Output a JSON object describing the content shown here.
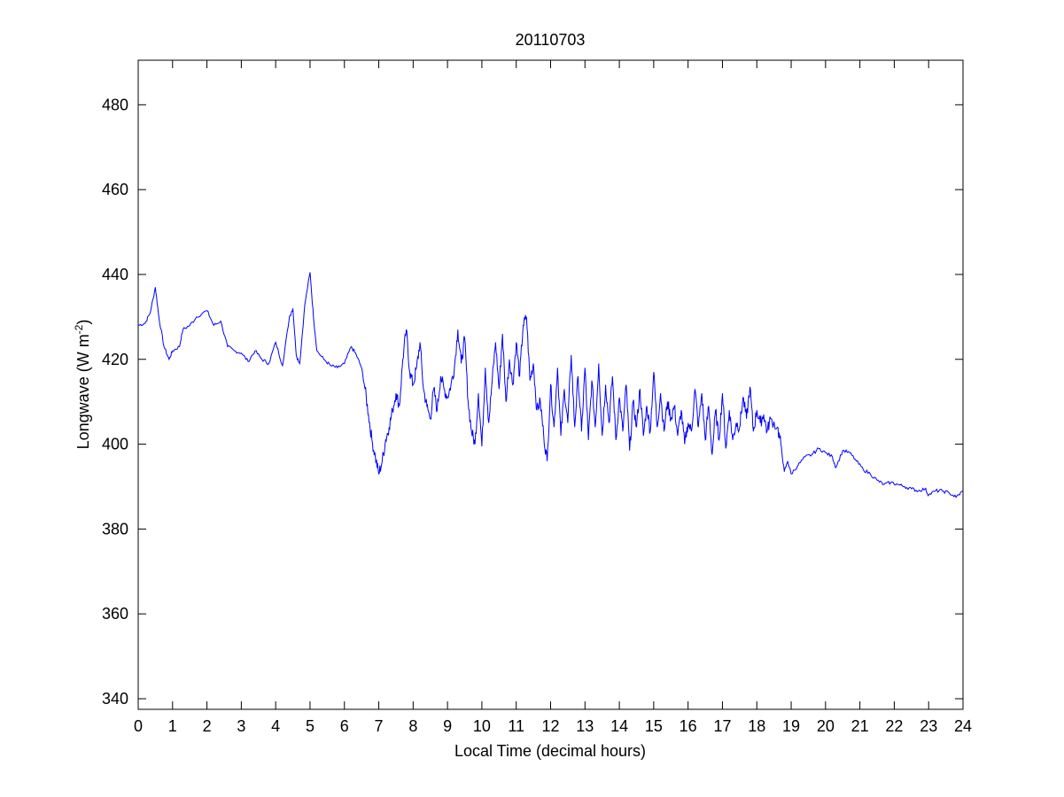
{
  "chart_data": {
    "type": "line",
    "title": "20110703",
    "xlabel": "Local Time (decimal hours)",
    "ylabel_main": "Longwave (W m",
    "ylabel_sup": "-2",
    "ylabel_end": ")",
    "xlim": [
      0,
      24
    ],
    "ylim": [
      337.5,
      490.5
    ],
    "xticks": [
      0,
      1,
      2,
      3,
      4,
      5,
      6,
      7,
      8,
      9,
      10,
      11,
      12,
      13,
      14,
      15,
      16,
      17,
      18,
      19,
      20,
      21,
      22,
      23,
      24
    ],
    "yticks": [
      340,
      360,
      380,
      400,
      420,
      440,
      460,
      480
    ],
    "grid": false,
    "series": [
      {
        "name": "Longwave",
        "color": "#0000ff",
        "x": [
          0,
          0.2,
          0.35,
          0.5,
          0.6,
          0.75,
          0.9,
          1.0,
          1.2,
          1.3,
          1.5,
          1.7,
          2.0,
          2.2,
          2.4,
          2.6,
          2.8,
          3.0,
          3.2,
          3.4,
          3.6,
          3.8,
          4.0,
          4.2,
          4.4,
          4.5,
          4.6,
          4.7,
          4.85,
          5.0,
          5.1,
          5.2,
          5.4,
          5.6,
          5.8,
          6.0,
          6.2,
          6.35,
          6.5,
          6.6,
          6.7,
          6.8,
          6.9,
          7.0,
          7.1,
          7.2,
          7.3,
          7.4,
          7.5,
          7.6,
          7.7,
          7.8,
          7.9,
          8.0,
          8.1,
          8.2,
          8.3,
          8.4,
          8.5,
          8.6,
          8.7,
          8.8,
          8.9,
          9.0,
          9.1,
          9.2,
          9.3,
          9.4,
          9.5,
          9.6,
          9.7,
          9.8,
          9.9,
          10.0,
          10.1,
          10.2,
          10.3,
          10.4,
          10.5,
          10.6,
          10.7,
          10.8,
          10.9,
          11.0,
          11.1,
          11.2,
          11.3,
          11.4,
          11.5,
          11.6,
          11.7,
          11.8,
          11.9,
          12.0,
          12.1,
          12.2,
          12.3,
          12.4,
          12.5,
          12.6,
          12.7,
          12.8,
          12.9,
          13.0,
          13.1,
          13.2,
          13.3,
          13.4,
          13.5,
          13.6,
          13.7,
          13.8,
          13.9,
          14.0,
          14.1,
          14.2,
          14.3,
          14.4,
          14.5,
          14.6,
          14.7,
          14.8,
          14.9,
          15.0,
          15.1,
          15.2,
          15.3,
          15.4,
          15.5,
          15.6,
          15.7,
          15.8,
          15.9,
          16.0,
          16.1,
          16.2,
          16.3,
          16.4,
          16.5,
          16.6,
          16.7,
          16.8,
          16.9,
          17.0,
          17.1,
          17.2,
          17.3,
          17.4,
          17.5,
          17.6,
          17.7,
          17.8,
          17.9,
          18.0,
          18.1,
          18.2,
          18.3,
          18.4,
          18.6,
          18.7,
          18.8,
          18.9,
          19.0,
          19.2,
          19.4,
          19.6,
          19.8,
          20.0,
          20.2,
          20.3,
          20.5,
          20.7,
          20.9,
          21.1,
          21.3,
          21.5,
          21.7,
          21.9,
          22.1,
          22.3,
          22.5,
          22.7,
          22.9,
          23.0,
          23.2,
          23.4,
          23.6,
          23.8,
          24.0
        ],
        "y": [
          428,
          428.5,
          431,
          437,
          430,
          423,
          420,
          422,
          423,
          427,
          428,
          430,
          431.5,
          428,
          429,
          423,
          422,
          421.5,
          419.5,
          422,
          420,
          419,
          424,
          418.5,
          430,
          432,
          421,
          419,
          433,
          440.5,
          430,
          422,
          420,
          418.5,
          418,
          419,
          423,
          421,
          418,
          413,
          407,
          401,
          397,
          393,
          396,
          401,
          404,
          408,
          412,
          409,
          420,
          427,
          417,
          414,
          418,
          424,
          413,
          409,
          406,
          413,
          408,
          416,
          413,
          411,
          414,
          418,
          427,
          419,
          425,
          410,
          403,
          400,
          412,
          399.5,
          418,
          405,
          415,
          424,
          413,
          426,
          410,
          420,
          414,
          424,
          416,
          428,
          430,
          415,
          419,
          408,
          410,
          402,
          396,
          414,
          404,
          418,
          402,
          413,
          405,
          421,
          404,
          416,
          403,
          418,
          401,
          415,
          404,
          419,
          402,
          414,
          405,
          416,
          401,
          411,
          403,
          414,
          398.5,
          410,
          404,
          413,
          402,
          409,
          403,
          417,
          404,
          412,
          403,
          410,
          406,
          409,
          402,
          408,
          400,
          405,
          403,
          413,
          404,
          412,
          401,
          409,
          397.5,
          408,
          401,
          412,
          399,
          408,
          401,
          405,
          404,
          411,
          406,
          413.5,
          403,
          408,
          405,
          407,
          403,
          406,
          404,
          400,
          393.5,
          396,
          393,
          395,
          397,
          397.5,
          399,
          398,
          397,
          394.5,
          398.5,
          398,
          396,
          394,
          393,
          391.5,
          390.5,
          391,
          390.5,
          390,
          389.5,
          389,
          389.5,
          388,
          389,
          389,
          388.5,
          387.5,
          389
        ]
      }
    ]
  }
}
